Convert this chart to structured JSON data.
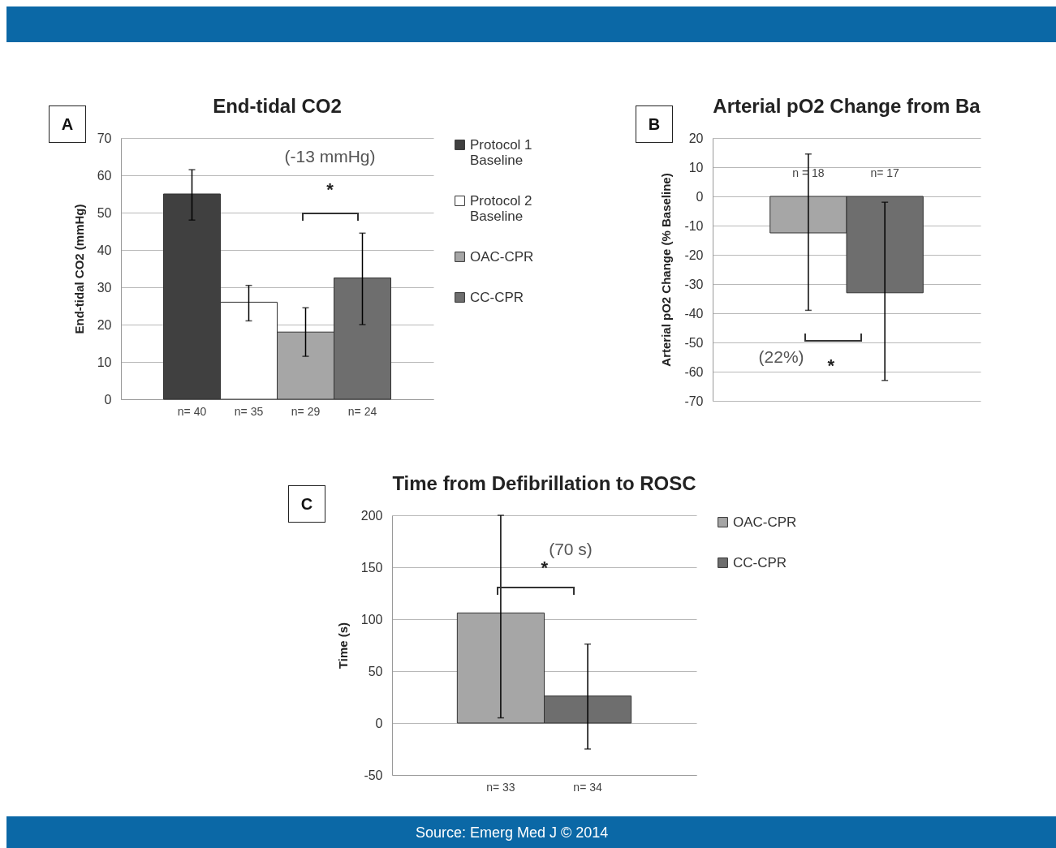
{
  "chart_data": [
    {
      "type": "bar",
      "title": "End-tidal CO2",
      "ylabel": "End-tidal CO2 (mmHg)",
      "categories": [
        "n= 40",
        "n= 35",
        "n= 29",
        "n= 24"
      ],
      "series": [
        {
          "name": "Protocol 1 Baseline",
          "color": "#404040",
          "values": [
            55,
            null,
            null,
            null
          ],
          "errors": [
            [
              48,
              61.5
            ],
            null,
            null,
            null
          ]
        },
        {
          "name": "Protocol 2 Baseline",
          "color": "#ffffff",
          "values": [
            null,
            26,
            null,
            null
          ],
          "errors": [
            null,
            [
              21,
              30.5
            ],
            null,
            null
          ]
        },
        {
          "name": "OAC-CPR",
          "color": "#a6a6a6",
          "values": [
            null,
            null,
            18,
            null
          ],
          "errors": [
            null,
            null,
            [
              11.5,
              24.5
            ],
            null
          ]
        },
        {
          "name": "CC-CPR",
          "color": "#6e6e6e",
          "values": [
            null,
            null,
            null,
            32.5
          ],
          "errors": [
            null,
            null,
            null,
            [
              20,
              44.5
            ]
          ]
        }
      ],
      "ylim": [
        0,
        70
      ],
      "yticks": [
        0,
        10,
        20,
        30,
        40,
        50,
        60,
        70
      ],
      "grid": "y",
      "legend": "right",
      "annotations": [
        "A",
        "(-13 mmHg)",
        "*"
      ]
    },
    {
      "type": "bar",
      "title": "Arterial pO2 Change from Ba",
      "ylabel": "Arterial pO2 Change (% Baseline)",
      "categories": [
        "n = 18",
        "n= 17"
      ],
      "values": [
        -12.5,
        -33
      ],
      "colors": [
        "#a6a6a6",
        "#6e6e6e"
      ],
      "errors": [
        [
          -39,
          14.5
        ],
        [
          -63,
          -2
        ]
      ],
      "ylim": [
        -70,
        20
      ],
      "yticks": [
        -70,
        -60,
        -50,
        -40,
        -30,
        -20,
        -10,
        0,
        10,
        20
      ],
      "grid": "y",
      "annotations": [
        "B",
        "(22%)",
        "*"
      ]
    },
    {
      "type": "bar",
      "title": "Time from Defibrillation to ROSC",
      "ylabel": "Time (s)",
      "categories": [
        "n= 33",
        "n= 34"
      ],
      "series": [
        {
          "name": "OAC-CPR",
          "color": "#a6a6a6",
          "values": [
            106,
            null
          ],
          "errors": [
            [
              5,
              200
            ],
            null
          ]
        },
        {
          "name": "CC-CPR",
          "color": "#6e6e6e",
          "values": [
            null,
            26
          ],
          "errors": [
            null,
            [
              -25,
              76
            ]
          ]
        }
      ],
      "ylim": [
        -50,
        200
      ],
      "yticks": [
        -50,
        0,
        50,
        100,
        150,
        200
      ],
      "grid": "y",
      "legend": "right",
      "annotations": [
        "C",
        "(70 s)",
        "*",
        "Source: Emerg Med J © 2014"
      ]
    }
  ]
}
